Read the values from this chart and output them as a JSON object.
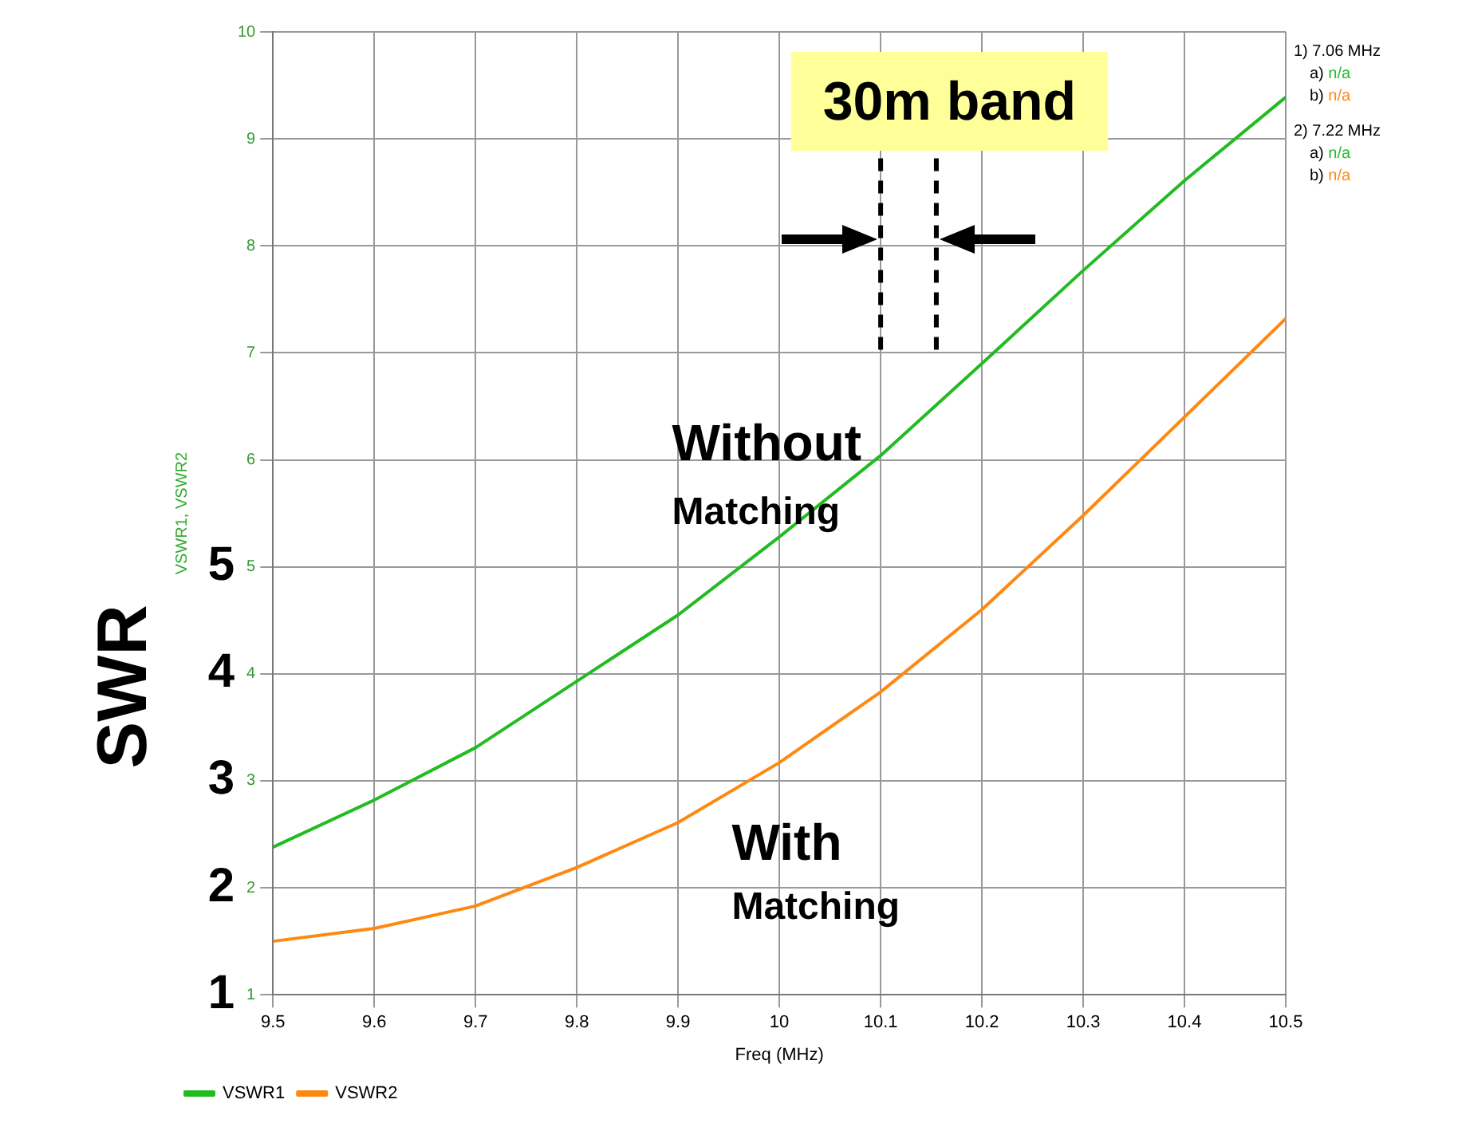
{
  "chart_data": {
    "type": "line",
    "xlabel": "Freq (MHz)",
    "ylabel": "VSWR1, VSWR2",
    "x": [
      9.5,
      9.6,
      9.7,
      9.8,
      9.9,
      10.0,
      10.1,
      10.2,
      10.3,
      10.4,
      10.5
    ],
    "series": [
      {
        "name": "VSWR1",
        "color": "#22bb22",
        "values": [
          2.38,
          2.82,
          3.31,
          3.93,
          4.55,
          5.28,
          6.04,
          6.9,
          7.77,
          8.61,
          9.39
        ]
      },
      {
        "name": "VSWR2",
        "color": "#ff8811",
        "values": [
          1.5,
          1.62,
          1.83,
          2.19,
          2.61,
          3.17,
          3.83,
          4.6,
          5.48,
          6.4,
          7.32
        ]
      }
    ],
    "xlim": [
      9.5,
      10.5
    ],
    "xticks": [
      9.5,
      9.6,
      9.7,
      9.8,
      9.9,
      10,
      10.1,
      10.2,
      10.3,
      10.4,
      10.5
    ],
    "ylim": [
      1,
      10
    ],
    "yticks": [
      1,
      2,
      3,
      4,
      5,
      6,
      7,
      8,
      9,
      10
    ],
    "grid": true,
    "legend": "bottom",
    "line_style": "solid",
    "ref_lines": [
      {
        "axis": "x",
        "value": 10.1,
        "line_style": "dashed",
        "color": "#000000"
      },
      {
        "axis": "x",
        "value": 10.155,
        "line_style": "dashed",
        "color": "#000000"
      }
    ],
    "annotations": [
      "30m band",
      "Without",
      "Matching",
      "With",
      "Matching",
      "SWR",
      "1",
      "2",
      "3",
      "4",
      "5",
      "1) 7.06 MHz",
      "a) n/a",
      "b) n/a",
      "2) 7.22 MHz",
      "a) n/a",
      "b) n/a"
    ]
  }
}
